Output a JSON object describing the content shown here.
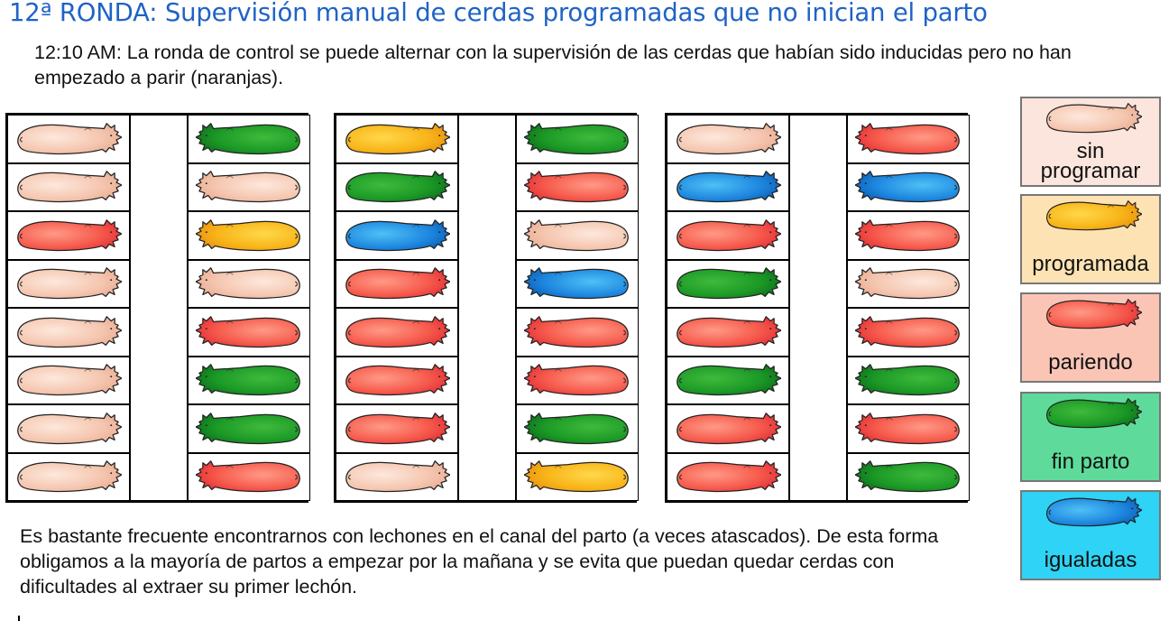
{
  "title": "12ª RONDA: Supervisión manual de cerdas programadas que no inician el parto",
  "subtitle": "12:10 AM: La ronda de control se puede alternar con la supervisión de las cerdas que habían sido inducidas pero no han empezado a parir (naranjas).",
  "bottom_text": "Es bastante frecuente encontrarnos con lechones en el canal del parto (a veces atascados). De esta forma obligamos a la mayoría de partos a empezar por la mañana y se evita que puedan quedar cerdas con dificultades al extraer su primer lechón.",
  "colors": {
    "sin_programar": {
      "light": "#fde8dc",
      "mid": "#f5c7b1",
      "dark": "#e9a88d"
    },
    "programada": {
      "light": "#ffd84a",
      "mid": "#f8b418",
      "dark": "#e68a10"
    },
    "pariendo": {
      "light": "#ff9a86",
      "mid": "#f65a4c",
      "dark": "#e02833"
    },
    "fin_parto": {
      "light": "#3fba3c",
      "mid": "#1c9a26",
      "dark": "#0a6a1a"
    },
    "igualadas": {
      "light": "#4fc0f5",
      "mid": "#1e88e0",
      "dark": "#0a58b0"
    }
  },
  "legend": [
    {
      "key": "sin_programar",
      "label": "sin\nprogramar",
      "bg": "#fbe5dc"
    },
    {
      "key": "programada",
      "label": "programada",
      "bg": "#fde3b4"
    },
    {
      "key": "pariendo",
      "label": "pariendo",
      "bg": "#fbc5b6"
    },
    {
      "key": "fin_parto",
      "label": "fin parto",
      "bg": "#5edb9b"
    },
    {
      "key": "igualadas",
      "label": "igualadas",
      "bg": "#2ed3f5"
    }
  ],
  "rooms": [
    {
      "left": [
        "sin_programar",
        "sin_programar",
        "pariendo",
        "sin_programar",
        "sin_programar",
        "sin_programar",
        "sin_programar",
        "sin_programar"
      ],
      "left_dir": [
        "R",
        "R",
        "R",
        "R",
        "R",
        "R",
        "R",
        "R"
      ],
      "right": [
        "fin_parto",
        "sin_programar",
        "programada",
        "sin_programar",
        "pariendo",
        "fin_parto",
        "fin_parto",
        "pariendo"
      ],
      "right_dir": [
        "L",
        "L",
        "L",
        "L",
        "L",
        "L",
        "L",
        "L"
      ]
    },
    {
      "left": [
        "programada",
        "fin_parto",
        "igualadas",
        "pariendo",
        "pariendo",
        "pariendo",
        "pariendo",
        "sin_programar"
      ],
      "left_dir": [
        "R",
        "R",
        "R",
        "R",
        "R",
        "R",
        "R",
        "R"
      ],
      "right": [
        "fin_parto",
        "pariendo",
        "sin_programar",
        "igualadas",
        "pariendo",
        "pariendo",
        "fin_parto",
        "programada"
      ],
      "right_dir": [
        "L",
        "L",
        "L",
        "L",
        "L",
        "L",
        "L",
        "L"
      ]
    },
    {
      "left": [
        "sin_programar",
        "igualadas",
        "pariendo",
        "fin_parto",
        "pariendo",
        "fin_parto",
        "pariendo",
        "pariendo"
      ],
      "left_dir": [
        "R",
        "R",
        "R",
        "R",
        "R",
        "R",
        "R",
        "R"
      ],
      "right": [
        "pariendo",
        "igualadas",
        "pariendo",
        "sin_programar",
        "pariendo",
        "fin_parto",
        "pariendo",
        "fin_parto"
      ],
      "right_dir": [
        "L",
        "L",
        "L",
        "L",
        "L",
        "L",
        "L",
        "L"
      ]
    }
  ]
}
